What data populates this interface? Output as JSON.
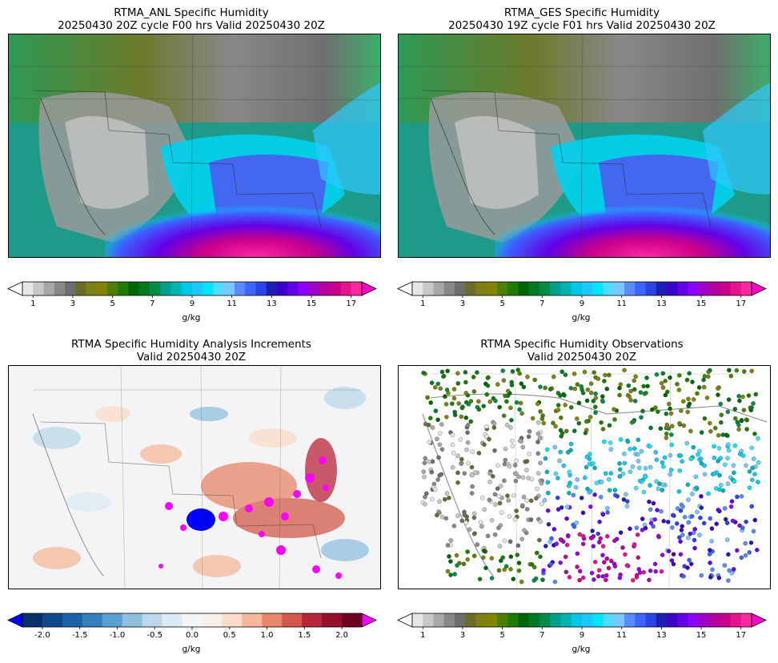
{
  "panels": [
    {
      "title_line1": "RTMA_ANL Specific Humidity",
      "title_line2": "20250430 20Z cycle F00 hrs Valid 20250430 20Z",
      "colorbar": {
        "ticks": [
          "1",
          "3",
          "5",
          "7",
          "9",
          "11",
          "13",
          "15",
          "17"
        ],
        "label": "g/kg"
      }
    },
    {
      "title_line1": "RTMA_GES Specific Humidity",
      "title_line2": "20250430 19Z cycle F01 hrs Valid 20250430 20Z",
      "colorbar": {
        "ticks": [
          "1",
          "3",
          "5",
          "7",
          "9",
          "11",
          "13",
          "15",
          "17"
        ],
        "label": "g/kg"
      }
    },
    {
      "title_line1": "RTMA Specific Humidity Analysis Increments",
      "title_line2": "Valid 20250430 20Z",
      "colorbar": {
        "ticks": [
          "-2.0",
          "-1.5",
          "-1.0",
          "-0.5",
          "0.0",
          "0.5",
          "1.0",
          "1.5",
          "2.0"
        ],
        "label": "g/kg"
      }
    },
    {
      "title_line1": "RTMA Specific Humidity Observations",
      "title_line2": "Valid 20250430 20Z",
      "colorbar": {
        "ticks": [
          "1",
          "3",
          "5",
          "7",
          "9",
          "11",
          "13",
          "15",
          "17"
        ],
        "label": "g/kg"
      }
    }
  ],
  "colors": {
    "humidity_scale": [
      "#ffffff",
      "#e6e6e6",
      "#c8c8c8",
      "#a8a8a8",
      "#888888",
      "#6e6e6e",
      "#6b6b2a",
      "#7f7f17",
      "#848400",
      "#4f7f00",
      "#1f7a00",
      "#006600",
      "#007a22",
      "#008c46",
      "#00a08a",
      "#00b4b4",
      "#00c8e6",
      "#1ec8ff",
      "#00e6ff",
      "#50dcff",
      "#78c8ff",
      "#5a8cff",
      "#3c64ff",
      "#2a44e6",
      "#1e1eb4",
      "#3c00c8",
      "#6400e6",
      "#8c00ff",
      "#9e00c8",
      "#b400a0",
      "#c8008c",
      "#e6148c",
      "#ff28a0"
    ],
    "increment_scale": [
      "#0000ff",
      "#08306b",
      "#104a8c",
      "#1d62a8",
      "#3480be",
      "#5aa0d0",
      "#8fc0de",
      "#bcd8ea",
      "#dceaf4",
      "#f2f4f6",
      "#f8efea",
      "#fadcc8",
      "#f5b89a",
      "#e8876a",
      "#d35a4a",
      "#b8263a",
      "#94102c",
      "#6e0220",
      "#ff00ff"
    ],
    "low_end": "#ffffff",
    "high_end": "#ff00c8",
    "neg_end": "#0000ff",
    "pos_end": "#ff00ff"
  }
}
